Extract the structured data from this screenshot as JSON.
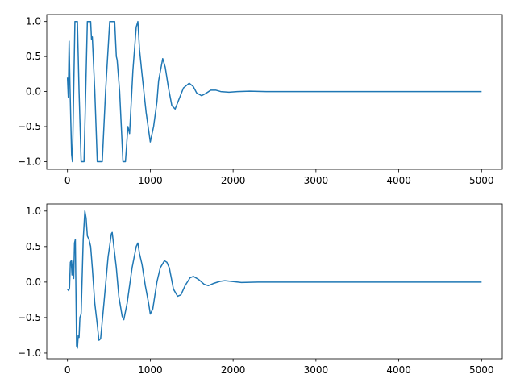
{
  "chart_data": [
    {
      "type": "line",
      "x": [
        0,
        10,
        20,
        30,
        50,
        60,
        75,
        90,
        120,
        140,
        165,
        200,
        220,
        240,
        280,
        290,
        300,
        330,
        360,
        420,
        460,
        510,
        570,
        590,
        600,
        630,
        670,
        700,
        730,
        750,
        790,
        830,
        850,
        870,
        900,
        950,
        1000,
        1040,
        1080,
        1100,
        1150,
        1180,
        1220,
        1260,
        1300,
        1350,
        1400,
        1470,
        1520,
        1560,
        1620,
        1680,
        1730,
        1790,
        1850,
        1950,
        2050,
        2200,
        2400,
        5000
      ],
      "series": [
        {
          "color": "#1f77b4",
          "values": [
            0.2,
            -0.08,
            0.72,
            0.1,
            -0.9,
            -1.0,
            0,
            1.0,
            1.0,
            0,
            -1.0,
            -1.0,
            0,
            1.0,
            1.0,
            0.75,
            0.78,
            0,
            -1.0,
            -1.0,
            0,
            1.0,
            1.0,
            0.5,
            0.45,
            0,
            -1.0,
            -1.0,
            -0.5,
            -0.6,
            0.3,
            0.92,
            1.0,
            0.6,
            0.25,
            -0.3,
            -0.72,
            -0.5,
            -0.15,
            0.15,
            0.47,
            0.35,
            0.05,
            -0.2,
            -0.25,
            -0.1,
            0.05,
            0.12,
            0.07,
            -0.02,
            -0.06,
            -0.02,
            0.02,
            0.02,
            0.0,
            -0.01,
            0.0,
            0.005,
            0,
            0
          ]
        }
      ],
      "xlim": [
        -250,
        5250
      ],
      "xticks": [
        0,
        1000,
        2000,
        3000,
        4000,
        5000
      ],
      "ylim": [
        -1.11,
        1.1
      ],
      "yticks": [
        {
          "value": -1.0,
          "label": "−1.0"
        },
        {
          "value": -0.5,
          "label": "−0.5"
        },
        {
          "value": 0.0,
          "label": "0.0"
        },
        {
          "value": 0.5,
          "label": "0.5"
        },
        {
          "value": 1.0,
          "label": "1.0"
        }
      ]
    },
    {
      "type": "line",
      "x": [
        0,
        15,
        25,
        35,
        45,
        55,
        65,
        75,
        85,
        95,
        110,
        120,
        130,
        140,
        150,
        165,
        190,
        210,
        225,
        240,
        260,
        280,
        300,
        330,
        360,
        380,
        400,
        440,
        490,
        530,
        540,
        570,
        590,
        620,
        660,
        680,
        720,
        780,
        830,
        850,
        870,
        900,
        940,
        980,
        1000,
        1030,
        1080,
        1120,
        1170,
        1200,
        1230,
        1280,
        1330,
        1370,
        1420,
        1480,
        1520,
        1580,
        1650,
        1700,
        1760,
        1840,
        1900,
        1980,
        2100,
        2300,
        5000
      ],
      "series": [
        {
          "color": "#1f77b4",
          "values": [
            -0.1,
            -0.12,
            -0.08,
            0.28,
            0.3,
            0.1,
            0.3,
            0.05,
            0.55,
            0.6,
            -0.9,
            -0.93,
            -0.75,
            -0.78,
            -0.5,
            -0.45,
            0.6,
            1.0,
            0.9,
            0.65,
            0.6,
            0.5,
            0.2,
            -0.3,
            -0.6,
            -0.82,
            -0.8,
            -0.3,
            0.35,
            0.68,
            0.7,
            0.4,
            0.2,
            -0.2,
            -0.48,
            -0.53,
            -0.3,
            0.2,
            0.5,
            0.55,
            0.4,
            0.25,
            -0.05,
            -0.3,
            -0.45,
            -0.38,
            0,
            0.2,
            0.3,
            0.28,
            0.2,
            -0.1,
            -0.2,
            -0.18,
            -0.05,
            0.06,
            0.08,
            0.04,
            -0.03,
            -0.05,
            -0.02,
            0.01,
            0.02,
            0.01,
            -0.005,
            0,
            0
          ]
        }
      ],
      "xlim": [
        -250,
        5250
      ],
      "xticks": [
        0,
        1000,
        2000,
        3000,
        4000,
        5000
      ],
      "ylim": [
        -1.08,
        1.1
      ],
      "yticks": [
        {
          "value": -1.0,
          "label": "−1.0"
        },
        {
          "value": -0.5,
          "label": "−0.5"
        },
        {
          "value": 0.0,
          "label": "0.0"
        },
        {
          "value": 0.5,
          "label": "0.5"
        },
        {
          "value": 1.0,
          "label": "1.0"
        }
      ]
    }
  ]
}
